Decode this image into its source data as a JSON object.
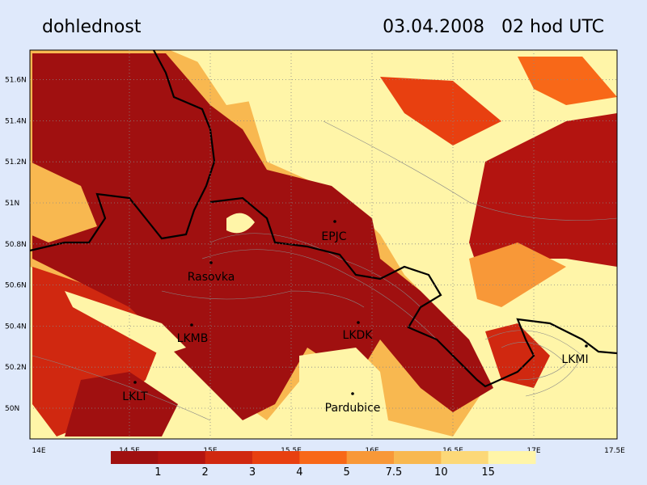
{
  "header": {
    "title": "dohlednost",
    "time": "03.04.2008   02 hod UTC"
  },
  "axes": {
    "x_labels": [
      "14E",
      "14.5E",
      "15E",
      "15.5E",
      "16E",
      "16.5E",
      "17E",
      "17.5E"
    ],
    "y_labels": [
      "50N",
      "50.2N",
      "50.4N",
      "50.6N",
      "50.8N",
      "51N",
      "51.2N",
      "51.4N",
      "51.6N"
    ]
  },
  "places": [
    {
      "label": "EPJC"
    },
    {
      "label": "Rasovka"
    },
    {
      "label": "LKMB"
    },
    {
      "label": "LKDK"
    },
    {
      "label": "LKMI"
    },
    {
      "label": "LKLT"
    },
    {
      "label": "Pardubice"
    }
  ],
  "legend": {
    "labels": [
      "1",
      "2",
      "3",
      "4",
      "5",
      "7.5",
      "10",
      "15"
    ],
    "colors": [
      "#a01010",
      "#b31410",
      "#d02810",
      "#e84010",
      "#f86818",
      "#f89838",
      "#f8b850",
      "#fcd878",
      "#fff5a8"
    ]
  }
}
